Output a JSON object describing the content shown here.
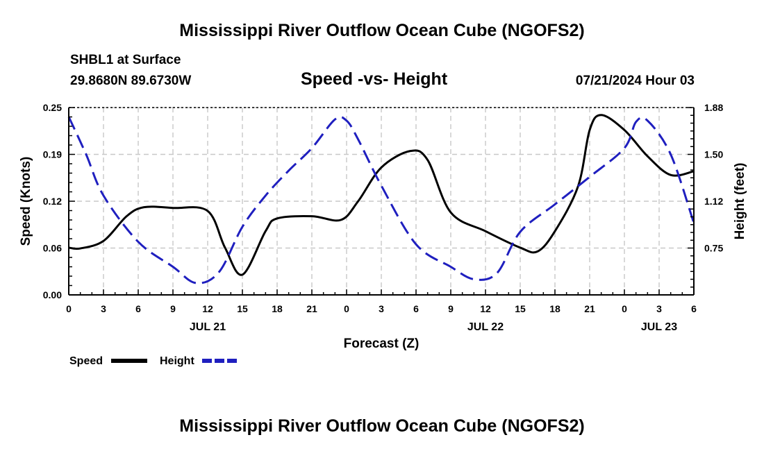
{
  "page": {
    "title_top": "Mississippi River Outflow Ocean Cube (NGOFS2)",
    "title_bottom": "Mississippi River Outflow Ocean Cube (NGOFS2)",
    "station": "SHBL1 at Surface",
    "coords": "29.8680N  89.6730W",
    "subtitle": "Speed -vs- Height",
    "datetime": "07/21/2024 Hour 03"
  },
  "chart_data": {
    "type": "line",
    "xlabel": "Forecast (Z)",
    "ylabel_left": "Speed (Knots)",
    "ylabel_right": "Height (feet)",
    "x_unit": "hours since 2024-07-21 00Z",
    "xlim": [
      0,
      54
    ],
    "ylim_left": [
      0,
      0.25
    ],
    "ylim_right": [
      0.375,
      1.875
    ],
    "x_ticks": [
      0,
      3,
      6,
      9,
      12,
      15,
      18,
      21,
      24,
      27,
      30,
      33,
      36,
      39,
      42,
      45,
      48,
      51,
      54
    ],
    "x_tick_labels": [
      "0",
      "3",
      "6",
      "9",
      "12",
      "15",
      "18",
      "21",
      "0",
      "3",
      "6",
      "9",
      "12",
      "15",
      "18",
      "21",
      "0",
      "3",
      "6"
    ],
    "date_labels": [
      {
        "x": 12,
        "label": "JUL 21"
      },
      {
        "x": 36,
        "label": "JUL 22"
      },
      {
        "x": 51,
        "label": "JUL 23"
      }
    ],
    "y_left_ticks": [
      0.0,
      0.0625,
      0.125,
      0.1875,
      0.25
    ],
    "y_left_labels": [
      "0.00",
      "0.06",
      "0.12",
      "0.19",
      "0.25"
    ],
    "y_right_ticks": [
      0.75,
      1.125,
      1.5,
      1.875
    ],
    "y_right_labels": [
      "0.75",
      "1.12",
      "1.50",
      "1.88"
    ],
    "grid": true,
    "legend_position": "bottom-left",
    "series": [
      {
        "name": "Speed",
        "axis": "left",
        "color": "#000000",
        "style": "solid",
        "x": [
          0,
          1,
          3,
          5,
          6.5,
          9,
          12,
          13.5,
          15,
          17,
          18,
          21,
          23.5,
          25,
          27,
          29.5,
          31,
          33,
          36,
          39,
          40.5,
          42,
          44,
          45,
          46,
          48,
          50,
          52,
          54
        ],
        "y": [
          0.063,
          0.062,
          0.072,
          0.105,
          0.117,
          0.116,
          0.112,
          0.063,
          0.027,
          0.085,
          0.102,
          0.105,
          0.1,
          0.125,
          0.17,
          0.192,
          0.18,
          0.11,
          0.085,
          0.063,
          0.058,
          0.085,
          0.145,
          0.22,
          0.24,
          0.22,
          0.185,
          0.16,
          0.165
        ]
      },
      {
        "name": "Height",
        "axis": "right",
        "color": "#1f1fbf",
        "style": "dashed",
        "x": [
          0,
          1.5,
          3,
          6,
          9,
          11,
          13,
          15,
          17,
          19,
          21,
          23,
          24,
          25,
          27,
          30,
          33,
          35,
          37,
          39,
          42,
          45,
          48,
          49,
          50,
          52,
          54
        ],
        "y": [
          1.8,
          1.5,
          1.17,
          0.8,
          0.6,
          0.47,
          0.56,
          0.92,
          1.17,
          1.37,
          1.55,
          1.78,
          1.77,
          1.62,
          1.25,
          0.78,
          0.6,
          0.5,
          0.55,
          0.88,
          1.1,
          1.32,
          1.55,
          1.76,
          1.77,
          1.5,
          0.95
        ]
      }
    ]
  }
}
